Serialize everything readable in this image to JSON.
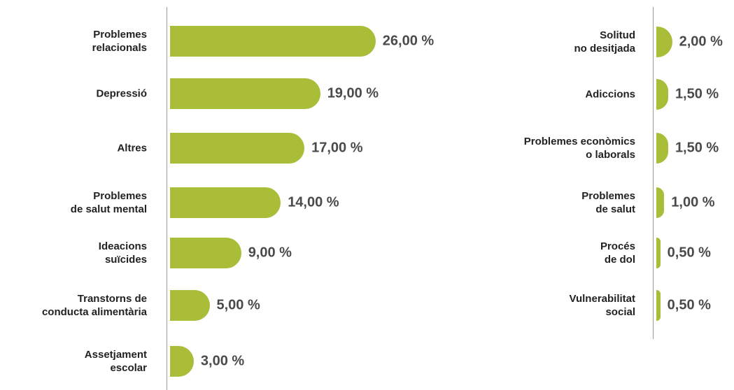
{
  "chart_data": [
    {
      "type": "bar",
      "categories": [
        "Problemes\nrelacionals",
        "Depressió",
        "Altres",
        "Problemes\nde salut mental",
        "Ideacions\nsuïcides",
        "Transtorns de\nconducta alimentària",
        "Assetjament\nescolar"
      ],
      "values": [
        26,
        19,
        17,
        14,
        9,
        5,
        3
      ],
      "value_labels": [
        "26,00 %",
        "19,00 %",
        "17,00 %",
        "14,00 %",
        "9,00 %",
        "5,00 %",
        "3,00 %"
      ],
      "color": "#a9bd38"
    },
    {
      "type": "bar",
      "categories": [
        "Solitud\nno desitjada",
        "Adiccions",
        "Problemes econòmics\no laborals",
        "Problemes\nde salut",
        "Procés\nde dol",
        "Vulnerabilitat\nsocial"
      ],
      "values": [
        2,
        1.5,
        1.5,
        1,
        0.5,
        0.5
      ],
      "value_labels": [
        "2,00 %",
        "1,50 %",
        "1,50 %",
        "1,00 %",
        "0,50 %",
        "0,50 %"
      ],
      "color": "#a9bd38"
    }
  ]
}
